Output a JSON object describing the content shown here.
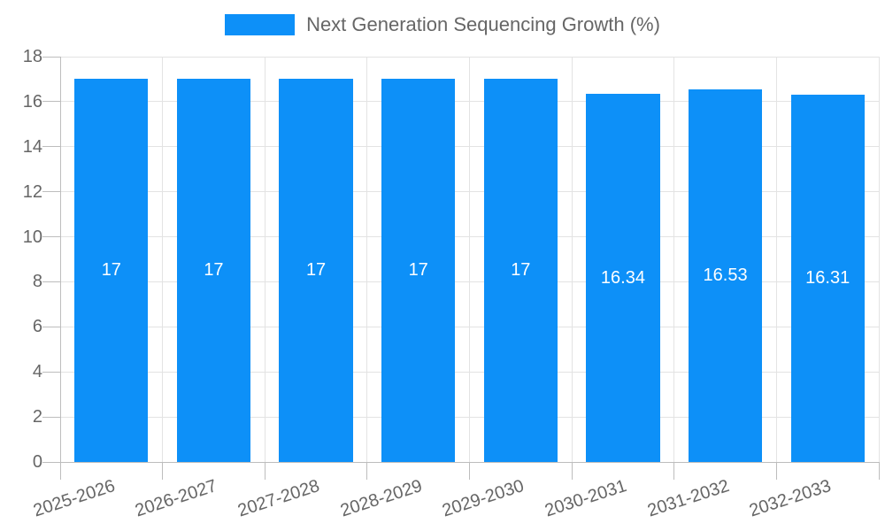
{
  "legend": {
    "label": "Next Generation Sequencing Growth (%)"
  },
  "colors": {
    "bar": "#0d90f8",
    "grid": "#e3e3e3",
    "axis": "#bdbdbd",
    "tick_text": "#666666",
    "legend_text": "#666666",
    "value_text": "#ffffff"
  },
  "chart_data": {
    "type": "bar",
    "title": "",
    "xlabel": "",
    "ylabel": "",
    "categories": [
      "2025-2026",
      "2026-2027",
      "2027-2028",
      "2028-2029",
      "2029-2030",
      "2030-2031",
      "2031-2032",
      "2032-2033"
    ],
    "values": [
      17,
      17,
      17,
      17,
      17,
      16.34,
      16.53,
      16.31
    ],
    "value_labels": [
      "17",
      "17",
      "17",
      "17",
      "17",
      "16.34",
      "16.53",
      "16.31"
    ],
    "ylim": [
      0,
      18
    ],
    "yticks": [
      0,
      2,
      4,
      6,
      8,
      10,
      12,
      14,
      16,
      18
    ],
    "grid": true,
    "legend_entries": [
      "Next Generation Sequencing Growth (%)"
    ],
    "legend_position": "top"
  }
}
